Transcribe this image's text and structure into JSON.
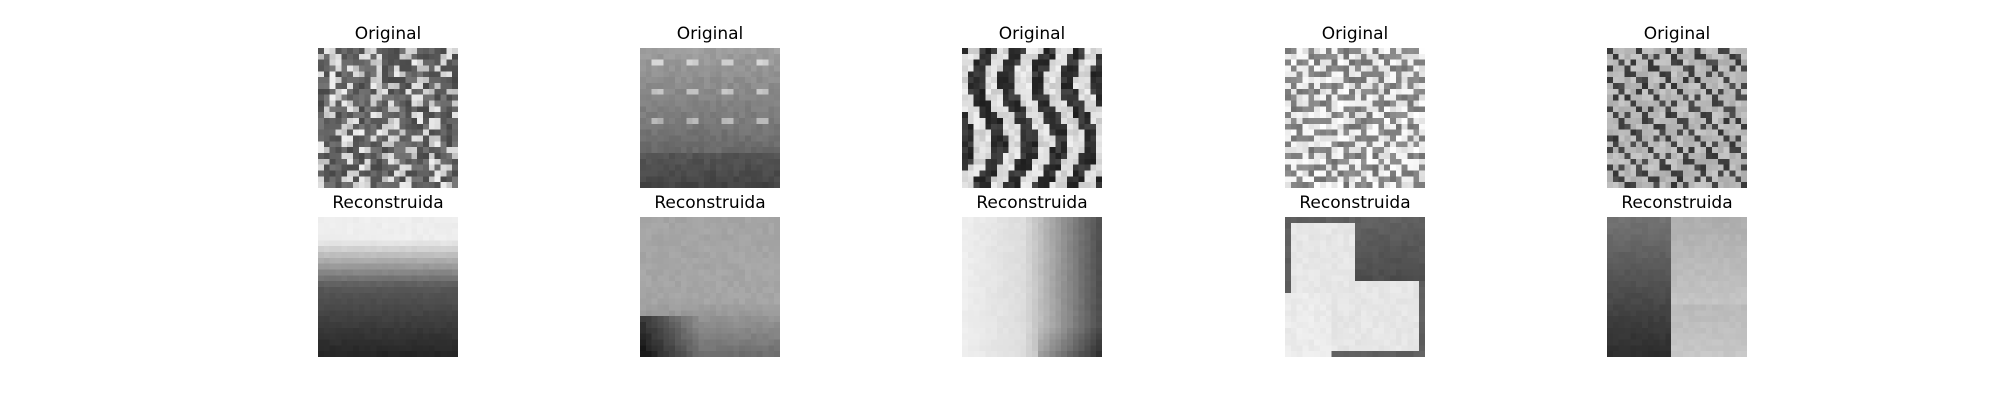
{
  "figure": {
    "rows": [
      {
        "title": "Original",
        "images": [
          {
            "description_icon": "cheetah-spot-texture-grayscale",
            "tone": "dark-mesh"
          },
          {
            "description_icon": "blurry-spots-texture-grayscale",
            "tone": "mid-gray-spots"
          },
          {
            "description_icon": "zebra-stripe-texture-grayscale",
            "tone": "vertical-stripes"
          },
          {
            "description_icon": "giraffe-pattern-texture-grayscale",
            "tone": "light-mesh"
          },
          {
            "description_icon": "leopard-spot-texture-grayscale",
            "tone": "dark-spots"
          }
        ]
      },
      {
        "title": "Reconstruida",
        "images": [
          {
            "description_icon": "reconstruction-top-light-bottom-dark",
            "tone": "vertical-gradient"
          },
          {
            "description_icon": "reconstruction-light-with-dark-bottom-left",
            "tone": "corner-dark"
          },
          {
            "description_icon": "reconstruction-left-light-right-dark",
            "tone": "horizontal-gradient"
          },
          {
            "description_icon": "reconstruction-light-center-dark-border",
            "tone": "vignette"
          },
          {
            "description_icon": "reconstruction-dark-left-light-right",
            "tone": "quadrant"
          }
        ]
      }
    ],
    "colors": {
      "background": "#ffffff",
      "text": "#000000"
    }
  }
}
